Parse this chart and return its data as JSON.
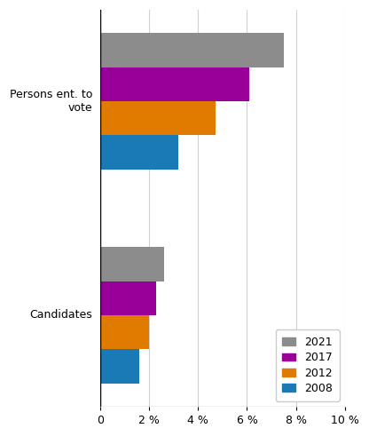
{
  "categories": [
    "Persons ent. to\nvote",
    "Candidates"
  ],
  "years": [
    "2021",
    "2017",
    "2012",
    "2008"
  ],
  "values": {
    "Persons ent. to\nvote": [
      7.5,
      6.1,
      4.7,
      3.2
    ],
    "Candidates": [
      2.6,
      2.3,
      2.0,
      1.6
    ]
  },
  "colors": {
    "2021": "#8c8c8c",
    "2017": "#990099",
    "2012": "#e07b00",
    "2008": "#1a7ab5"
  },
  "xlim": [
    0,
    10
  ],
  "xticks": [
    0,
    2,
    4,
    6,
    8,
    10
  ],
  "xticklabels": [
    "0",
    "2 %",
    "4 %",
    "6 %",
    "8 %",
    "10 %"
  ],
  "bar_height": 0.22,
  "background_color": "#ffffff",
  "grid_color": "#d0d0d0"
}
